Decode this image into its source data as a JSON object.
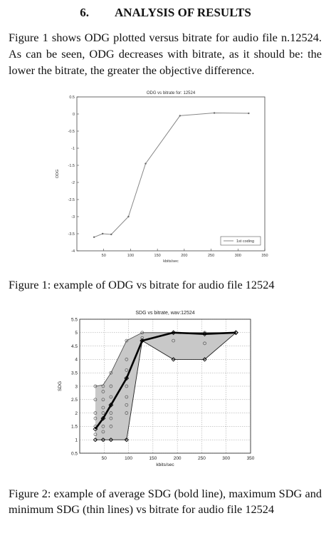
{
  "section": {
    "number": "6.",
    "title": "ANALYSIS OF RESULTS"
  },
  "paragraph": "Figure 1 shows ODG plotted versus bitrate for audio file n.12524. As can be seen, ODG decreases with bitrate, as it should be: the lower the bitrate, the greater the objective difference.",
  "captions": {
    "figure1": "Figure 1: example of ODG vs bitrate for audio file 12524",
    "figure2": "Figure 2: example of average SDG (bold line), maximum SDG and minimum SDG (thin lines) vs bitrate for audio file 12524"
  },
  "chart_data": [
    {
      "type": "line",
      "title": "ODG vs bitrate for: 12524",
      "xlabel": "kbits/sec",
      "ylabel": "ODG",
      "xlim": [
        0,
        350
      ],
      "ylim": [
        -4,
        0.5
      ],
      "xticks": [
        50,
        100,
        150,
        200,
        250,
        300,
        350
      ],
      "yticks": [
        0.5,
        0,
        -0.5,
        -1,
        -1.5,
        -2,
        -2.5,
        -3,
        -3.5,
        -4
      ],
      "grid": false,
      "legend": "bottom-right",
      "series": [
        {
          "name": "1st coding",
          "x": [
            32,
            48,
            64,
            96,
            128,
            192,
            256,
            320
          ],
          "y": [
            -3.6,
            -3.5,
            -3.52,
            -3.0,
            -1.45,
            -0.05,
            0.03,
            0.02
          ],
          "color": "#888888"
        }
      ]
    },
    {
      "type": "line",
      "title": "SDG vs bitrate, wav:12524",
      "xlabel": "kbits/sec",
      "ylabel": "SDG",
      "xlim": [
        0,
        350
      ],
      "ylim": [
        0.5,
        5.5
      ],
      "xticks": [
        50,
        100,
        150,
        200,
        250,
        300,
        350
      ],
      "yticks": [
        0.5,
        1,
        1.5,
        2,
        2.5,
        3,
        3.5,
        4,
        4.5,
        5,
        5.5
      ],
      "grid": true,
      "series": [
        {
          "role": "average",
          "x": [
            32,
            48,
            64,
            96,
            128,
            192,
            256,
            320
          ],
          "y": [
            1.4,
            1.8,
            2.3,
            3.3,
            4.7,
            5.0,
            4.95,
            5.0
          ]
        },
        {
          "role": "maximum",
          "x": [
            32,
            48,
            64,
            96,
            128,
            192,
            256,
            320
          ],
          "y": [
            3.0,
            3.05,
            3.5,
            4.7,
            5.0,
            5.0,
            5.0,
            5.0
          ]
        },
        {
          "role": "minimum",
          "x": [
            32,
            48,
            64,
            96,
            128,
            192,
            256,
            320
          ],
          "y": [
            1.0,
            1.0,
            1.0,
            1.0,
            4.7,
            4.0,
            4.0,
            5.0
          ]
        }
      ],
      "observations": [
        {
          "x": 32,
          "y": [
            1.0,
            1.2,
            1.5,
            1.8,
            2.0,
            2.5,
            3.0
          ]
        },
        {
          "x": 48,
          "y": [
            1.0,
            1.3,
            1.5,
            1.8,
            2.0,
            2.2,
            2.5,
            2.8,
            3.0
          ]
        },
        {
          "x": 64,
          "y": [
            1.0,
            1.5,
            1.8,
            2.0,
            2.3,
            2.6,
            3.0,
            3.5
          ]
        },
        {
          "x": 96,
          "y": [
            1.0,
            2.0,
            2.3,
            2.6,
            3.0,
            3.3,
            3.6,
            4.0,
            4.7
          ]
        },
        {
          "x": 128,
          "y": [
            4.7,
            4.8,
            5.0
          ]
        },
        {
          "x": 192,
          "y": [
            4.0,
            4.7,
            5.0
          ]
        },
        {
          "x": 256,
          "y": [
            4.0,
            4.6,
            5.0
          ]
        },
        {
          "x": 320,
          "y": [
            5.0
          ]
        }
      ]
    }
  ]
}
